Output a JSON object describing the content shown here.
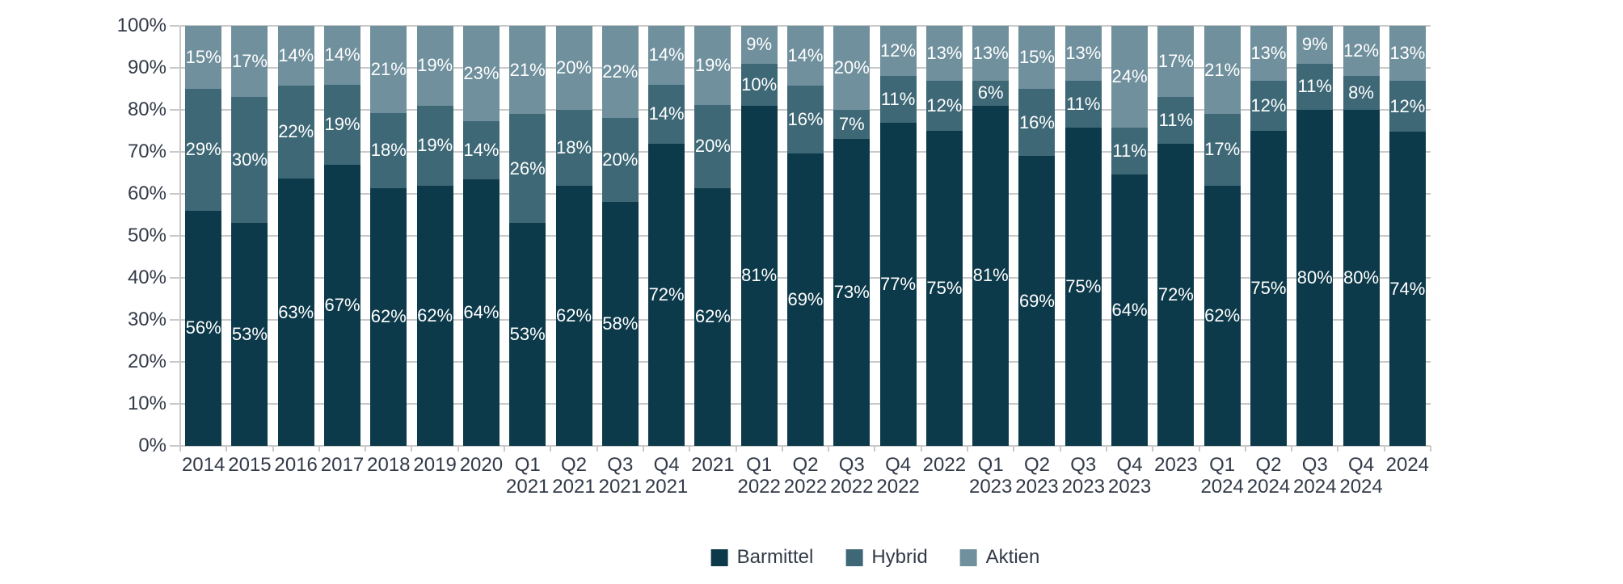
{
  "chart_data": {
    "type": "bar",
    "stacked": true,
    "stacked_100_percent": true,
    "title": "",
    "xlabel": "",
    "ylabel": "",
    "grid": true,
    "categories": [
      "2014",
      "2015",
      "2016",
      "2017",
      "2018",
      "2019",
      "2020",
      "Q1 2021",
      "Q2 2021",
      "Q3 2021",
      "Q4 2021",
      "2021",
      "Q1 2022",
      "Q2 2022",
      "Q3 2022",
      "Q4 2022",
      "2022",
      "Q1 2023",
      "Q2 2023",
      "Q3 2023",
      "Q4 2023",
      "2023",
      "Q1 2024",
      "Q2 2024",
      "Q3 2024",
      "Q4 2024",
      "2024"
    ],
    "series": [
      {
        "name": "Barmittel",
        "color": "#0d3a4a",
        "values": [
          56,
          53,
          63,
          67,
          62,
          62,
          64,
          53,
          62,
          58,
          72,
          62,
          81,
          69,
          73,
          77,
          75,
          81,
          69,
          75,
          64,
          72,
          62,
          75,
          80,
          80,
          74
        ]
      },
      {
        "name": "Hybrid",
        "color": "#3e6876",
        "values": [
          29,
          30,
          22,
          19,
          18,
          19,
          14,
          26,
          18,
          20,
          14,
          20,
          10,
          16,
          7,
          11,
          12,
          6,
          16,
          11,
          11,
          11,
          17,
          12,
          11,
          8,
          12
        ]
      },
      {
        "name": "Aktien",
        "color": "#70909d",
        "values": [
          15,
          17,
          14,
          14,
          21,
          19,
          23,
          21,
          20,
          22,
          14,
          19,
          9,
          14,
          20,
          12,
          13,
          13,
          15,
          13,
          24,
          17,
          21,
          13,
          9,
          12,
          13
        ]
      }
    ],
    "data_label_format": "{v}%",
    "y_axis": {
      "min": 0,
      "max": 100,
      "step": 10,
      "ticks": [
        "0%",
        "10%",
        "20%",
        "30%",
        "40%",
        "50%",
        "60%",
        "70%",
        "80%",
        "90%",
        "100%"
      ]
    },
    "legend": {
      "position": "bottom",
      "entries": [
        "Barmittel",
        "Hybrid",
        "Aktien"
      ]
    }
  },
  "colors": {
    "background": "#ffffff",
    "gridline": "#c9c9c9",
    "axis_text": "#333a48",
    "data_label_text": "#ffffff"
  }
}
